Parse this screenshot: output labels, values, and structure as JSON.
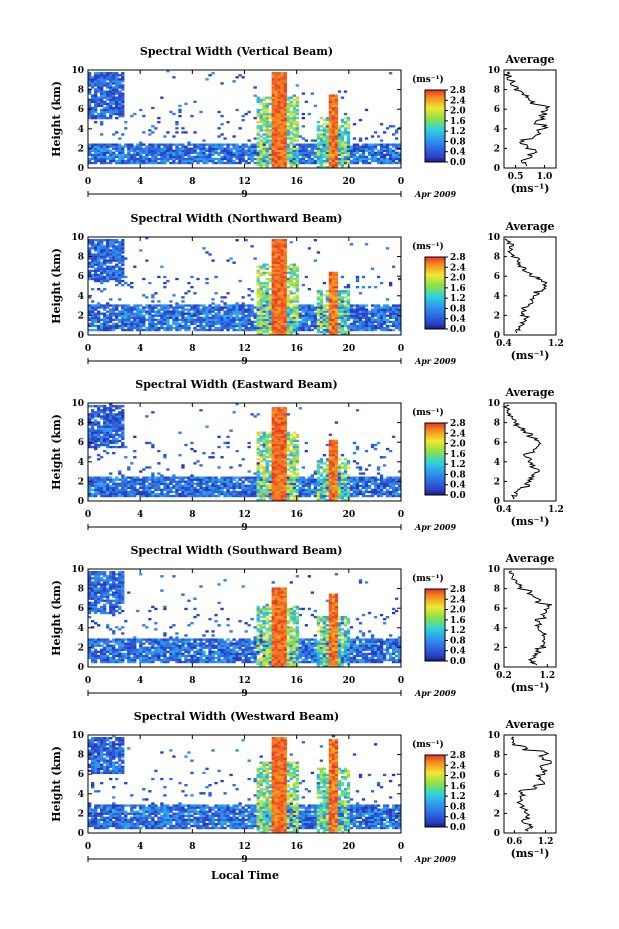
{
  "figure": {
    "x_axis_title": "Local Time",
    "date_note": "Apr 2009",
    "date_tick": "9"
  },
  "chart_data": [
    {
      "type": "heatmap",
      "title": "Spectral Width (Vertical Beam)",
      "ylabel": "Height (km)",
      "x_ticks": [
        "0",
        "4",
        "8",
        "12",
        "16",
        "20",
        "0"
      ],
      "y_ticks": [
        "0",
        "2",
        "4",
        "6",
        "8",
        "10"
      ],
      "xlim_hours": [
        0,
        24
      ],
      "ylim_km": [
        0,
        10
      ],
      "colorbar": {
        "label": "(ms⁻¹)",
        "ticks": [
          "0.0",
          "0.4",
          "0.8",
          "1.2",
          "1.6",
          "2.0",
          "2.4",
          "2.8"
        ],
        "range": [
          0.0,
          2.8
        ]
      },
      "features": {
        "low_layer_km": [
          0.4,
          2.5
        ],
        "cell_1": {
          "hour": 14.6,
          "top_km": 9.7
        },
        "cell_2": {
          "hour": 18.8,
          "top_km": 7.5
        },
        "upper_patch": {
          "hours": [
            0,
            2.8
          ],
          "km": [
            5.0,
            9.8
          ]
        }
      },
      "profile": {
        "title": "Average",
        "xlabel": "(ms⁻¹)",
        "x_ticks": [
          "0.5",
          "1.0"
        ],
        "xlim": [
          0.3,
          1.2
        ],
        "heights_km": [
          0.2,
          0.5,
          1.0,
          1.5,
          2.0,
          2.5,
          3.0,
          3.5,
          4.0,
          4.5,
          5.0,
          5.5,
          6.0,
          6.5,
          7.0,
          7.5,
          8.0,
          8.5,
          9.0,
          9.5
        ],
        "values": [
          0.7,
          0.6,
          0.75,
          0.85,
          0.7,
          0.6,
          0.8,
          0.9,
          1.0,
          0.85,
          0.95,
          1.0,
          1.05,
          0.8,
          0.7,
          0.6,
          0.5,
          0.45,
          0.4,
          0.35
        ]
      }
    },
    {
      "type": "heatmap",
      "title": "Spectral Width (Northward Beam)",
      "ylabel": "Height (km)",
      "x_ticks": [
        "0",
        "4",
        "8",
        "12",
        "16",
        "20",
        "0"
      ],
      "y_ticks": [
        "0",
        "2",
        "4",
        "6",
        "8",
        "10"
      ],
      "xlim_hours": [
        0,
        24
      ],
      "ylim_km": [
        0,
        10
      ],
      "colorbar": {
        "label": "(ms⁻¹)",
        "ticks": [
          "0.0",
          "0.4",
          "0.8",
          "1.2",
          "1.6",
          "2.0",
          "2.4",
          "2.8"
        ],
        "range": [
          0.0,
          2.8
        ]
      },
      "features": {
        "low_layer_km": [
          0.4,
          3.2
        ],
        "cell_1": {
          "hour": 14.6,
          "top_km": 9.7
        },
        "cell_2": {
          "hour": 18.8,
          "top_km": 6.5
        },
        "upper_patch": {
          "hours": [
            0,
            2.8
          ],
          "km": [
            5.5,
            9.8
          ]
        }
      },
      "profile": {
        "title": "Average",
        "xlabel": "(ms⁻¹)",
        "x_ticks": [
          "0.4",
          "1.2"
        ],
        "xlim": [
          0.4,
          1.2
        ],
        "heights_km": [
          0.2,
          0.5,
          1.0,
          1.5,
          2.0,
          2.5,
          3.0,
          3.5,
          4.0,
          4.5,
          5.0,
          5.5,
          6.0,
          6.5,
          7.0,
          7.5,
          8.0,
          8.5,
          9.0,
          9.5
        ],
        "values": [
          0.6,
          0.65,
          0.7,
          0.75,
          0.7,
          0.72,
          0.8,
          0.85,
          0.9,
          1.0,
          1.05,
          0.95,
          0.8,
          0.7,
          0.65,
          0.6,
          0.55,
          0.5,
          0.5,
          0.45
        ]
      }
    },
    {
      "type": "heatmap",
      "title": "Spectral Width (Eastward Beam)",
      "ylabel": "Height (km)",
      "x_ticks": [
        "0",
        "4",
        "8",
        "12",
        "16",
        "20",
        "0"
      ],
      "y_ticks": [
        "0",
        "2",
        "4",
        "6",
        "8",
        "10"
      ],
      "xlim_hours": [
        0,
        24
      ],
      "ylim_km": [
        0,
        10
      ],
      "colorbar": {
        "label": "(ms⁻¹)",
        "ticks": [
          "0.0",
          "0.4",
          "0.8",
          "1.2",
          "1.6",
          "2.0",
          "2.4",
          "2.8"
        ],
        "range": [
          0.0,
          2.8
        ]
      },
      "features": {
        "low_layer_km": [
          0.4,
          2.6
        ],
        "cell_1": {
          "hour": 14.6,
          "top_km": 9.5
        },
        "cell_2": {
          "hour": 18.8,
          "top_km": 6.2
        },
        "upper_patch": {
          "hours": [
            0,
            2.8
          ],
          "km": [
            5.5,
            9.8
          ]
        }
      },
      "profile": {
        "title": "Average",
        "xlabel": "(ms⁻¹)",
        "x_ticks": [
          "0.4",
          "1.2"
        ],
        "xlim": [
          0.4,
          1.2
        ],
        "heights_km": [
          0.2,
          0.5,
          1.0,
          1.5,
          2.0,
          2.5,
          3.0,
          3.5,
          4.0,
          4.5,
          5.0,
          5.5,
          6.0,
          6.5,
          7.0,
          7.5,
          8.0,
          8.5,
          9.0,
          9.5
        ],
        "values": [
          0.55,
          0.6,
          0.65,
          0.75,
          0.8,
          0.85,
          0.9,
          0.85,
          0.8,
          0.75,
          0.85,
          0.95,
          0.9,
          0.8,
          0.7,
          0.6,
          0.55,
          0.5,
          0.45,
          0.42
        ]
      }
    },
    {
      "type": "heatmap",
      "title": "Spectral Width (Southward Beam)",
      "ylabel": "Height (km)",
      "x_ticks": [
        "0",
        "4",
        "8",
        "12",
        "16",
        "20",
        "0"
      ],
      "y_ticks": [
        "0",
        "2",
        "4",
        "6",
        "8",
        "10"
      ],
      "xlim_hours": [
        0,
        24
      ],
      "ylim_km": [
        0,
        10
      ],
      "colorbar": {
        "label": "(ms⁻¹)",
        "ticks": [
          "0.0",
          "0.4",
          "0.8",
          "1.2",
          "1.6",
          "2.0",
          "2.4",
          "2.8"
        ],
        "range": [
          0.0,
          2.8
        ]
      },
      "features": {
        "low_layer_km": [
          0.4,
          3.0
        ],
        "cell_1": {
          "hour": 14.6,
          "top_km": 8.2
        },
        "cell_2": {
          "hour": 18.8,
          "top_km": 7.4
        },
        "upper_patch": {
          "hours": [
            0,
            2.8
          ],
          "km": [
            5.5,
            9.8
          ]
        }
      },
      "profile": {
        "title": "Average",
        "xlabel": "(ms⁻¹)",
        "x_ticks": [
          "0.2",
          "1.2"
        ],
        "xlim": [
          0.2,
          1.4
        ],
        "heights_km": [
          0.2,
          0.5,
          1.0,
          1.5,
          2.0,
          2.5,
          3.0,
          3.5,
          4.0,
          4.5,
          5.0,
          5.5,
          6.0,
          6.5,
          7.0,
          7.5,
          8.0,
          8.5,
          9.0,
          9.5
        ],
        "values": [
          0.9,
          0.85,
          0.9,
          1.0,
          1.1,
          1.15,
          1.1,
          1.05,
          1.0,
          0.95,
          1.1,
          1.2,
          1.25,
          1.0,
          0.9,
          0.8,
          0.6,
          0.5,
          0.4,
          0.35
        ]
      }
    },
    {
      "type": "heatmap",
      "title": "Spectral Width (Westward Beam)",
      "ylabel": "Height (km)",
      "x_ticks": [
        "0",
        "4",
        "8",
        "12",
        "16",
        "20",
        "0"
      ],
      "y_ticks": [
        "0",
        "2",
        "4",
        "6",
        "8",
        "10"
      ],
      "xlim_hours": [
        0,
        24
      ],
      "ylim_km": [
        0,
        10
      ],
      "colorbar": {
        "label": "(ms⁻¹)",
        "ticks": [
          "0.0",
          "0.4",
          "0.8",
          "1.2",
          "1.6",
          "2.0",
          "2.4",
          "2.8"
        ],
        "range": [
          0.0,
          2.8
        ]
      },
      "features": {
        "low_layer_km": [
          0.4,
          3.0
        ],
        "cell_1": {
          "hour": 14.6,
          "top_km": 9.7
        },
        "cell_2": {
          "hour": 18.8,
          "top_km": 9.5
        },
        "upper_patch": {
          "hours": [
            0,
            2.8
          ],
          "km": [
            6.0,
            9.8
          ]
        }
      },
      "profile": {
        "title": "Average",
        "xlabel": "(ms⁻¹)",
        "x_ticks": [
          "0.6",
          "1.2"
        ],
        "xlim": [
          0.4,
          1.4
        ],
        "heights_km": [
          0.2,
          0.5,
          1.0,
          1.5,
          2.0,
          2.5,
          3.0,
          3.5,
          4.0,
          4.5,
          5.0,
          5.5,
          6.0,
          6.5,
          7.0,
          7.5,
          8.0,
          8.5,
          9.0,
          9.5
        ],
        "values": [
          0.85,
          0.9,
          0.8,
          0.85,
          0.8,
          0.75,
          0.7,
          0.75,
          0.7,
          1.0,
          1.15,
          1.05,
          1.2,
          1.1,
          1.25,
          1.1,
          1.2,
          0.8,
          0.6,
          0.55
        ]
      }
    }
  ]
}
